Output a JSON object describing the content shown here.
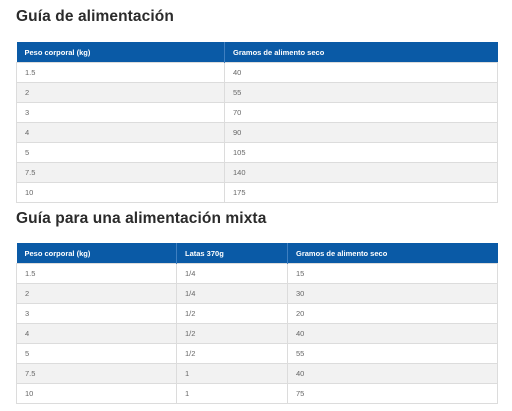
{
  "section1": {
    "title": "Guía de alimentación",
    "headers": [
      "Peso corporal (kg)",
      "Gramos de alimento seco"
    ],
    "rows": [
      [
        "1.5",
        "40"
      ],
      [
        "2",
        "55"
      ],
      [
        "3",
        "70"
      ],
      [
        "4",
        "90"
      ],
      [
        "5",
        "105"
      ],
      [
        "7.5",
        "140"
      ],
      [
        "10",
        "175"
      ]
    ]
  },
  "section2": {
    "title": "Guía para una alimentación mixta",
    "headers": [
      "Peso corporal (kg)",
      "Latas 370g",
      "Gramos de alimento seco"
    ],
    "rows": [
      [
        "1.5",
        "1/4",
        "15"
      ],
      [
        "2",
        "1/4",
        "30"
      ],
      [
        "3",
        "1/2",
        "20"
      ],
      [
        "4",
        "1/2",
        "40"
      ],
      [
        "5",
        "1/2",
        "55"
      ],
      [
        "7.5",
        "1",
        "40"
      ],
      [
        "10",
        "1",
        "75"
      ]
    ]
  },
  "colors": {
    "header_bg": "#0a5aa6",
    "header_text": "#ffffff",
    "row_alt_bg": "#f2f2f2",
    "cell_text": "#666666"
  }
}
